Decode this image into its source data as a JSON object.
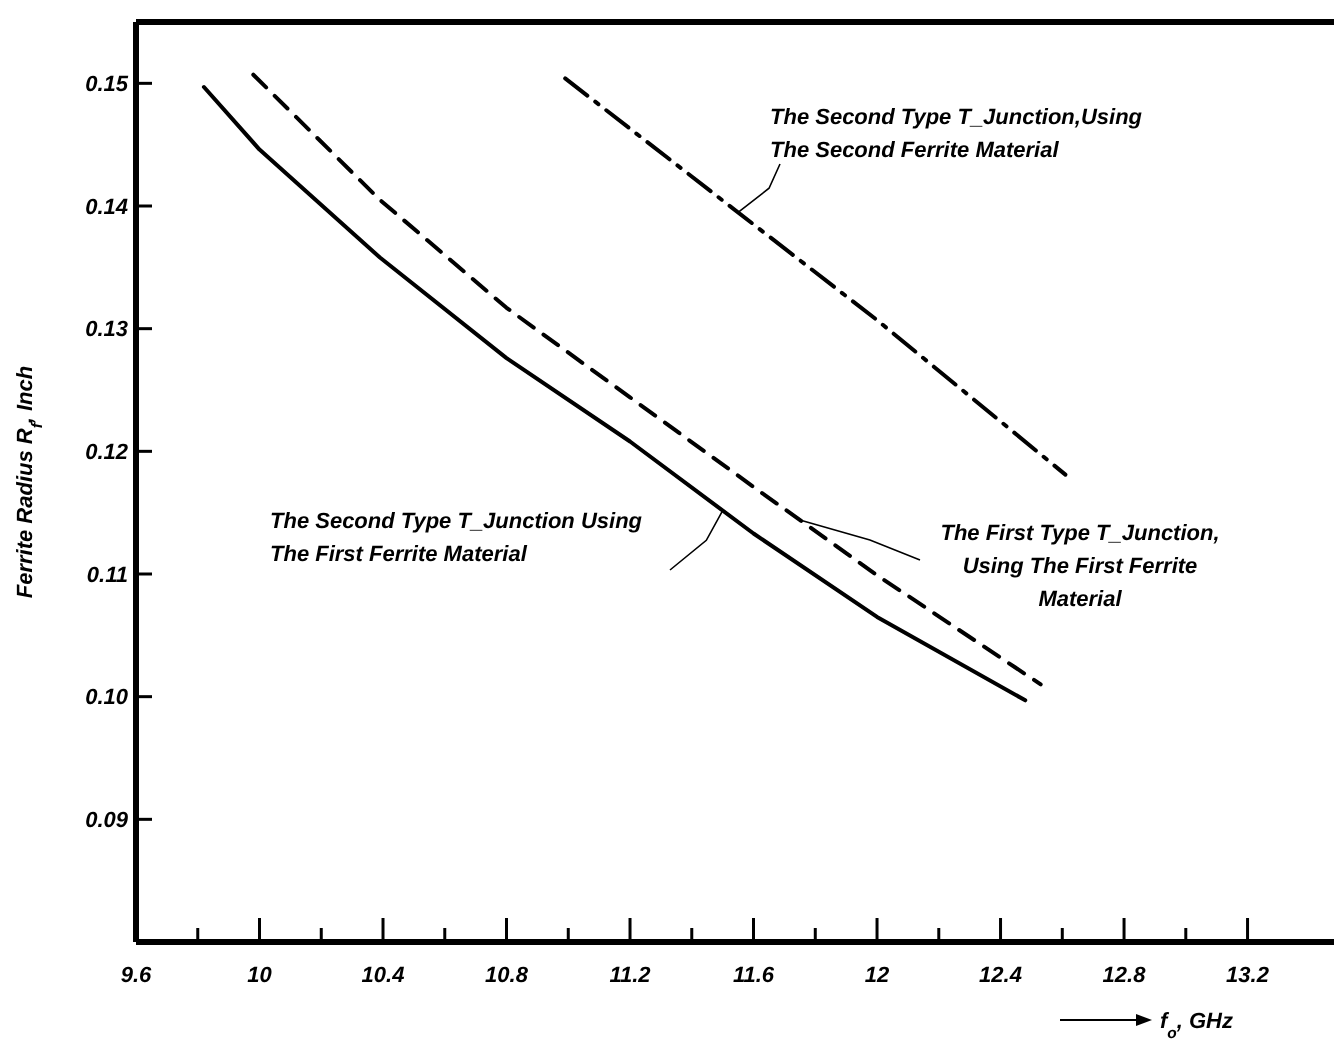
{
  "chart_data": {
    "type": "line",
    "xlabel": "f$_{o}$, GHz",
    "ylabel": "Ferrite Radius R$_{f}$, Inch",
    "xlim": [
      9.6,
      13.48
    ],
    "ylim": [
      0.08,
      0.155
    ],
    "xticks": [
      {
        "value": 9.6,
        "label": "9.6"
      },
      {
        "value": 9.8,
        "label": null
      },
      10,
      {
        "value": 10.2,
        "label": null
      },
      10.4,
      {
        "value": 10.6,
        "label": null
      },
      10.8,
      {
        "value": 11,
        "label": null
      },
      11.2,
      {
        "value": 11.4,
        "label": null
      },
      11.6,
      {
        "value": 11.8,
        "label": null
      },
      12,
      {
        "value": 12.2,
        "label": null
      },
      12.4,
      {
        "value": 12.6,
        "label": null
      },
      12.8,
      {
        "value": 13,
        "label": null
      },
      13.2
    ],
    "yticks": [
      0.09,
      {
        "value": 0.1,
        "label": "0.10"
      },
      0.11,
      0.12,
      0.13,
      0.14,
      0.15
    ],
    "grid": false,
    "marker": "none",
    "series": [
      {
        "name": "The Second Type T_Junction Using\nThe First Ferrite Material",
        "color": "#000000",
        "line_style": "solid",
        "x": [
          9.82,
          10.0,
          10.39,
          10.8,
          11.2,
          11.6,
          12.0,
          12.48
        ],
        "values": [
          0.1497,
          0.1446,
          0.1358,
          0.1276,
          0.1208,
          0.1133,
          0.1065,
          0.0997
        ]
      },
      {
        "name": "The First Type T_Junction,\nUsing The First Ferrite\nMaterial",
        "color": "#000000",
        "line_style": "dashed",
        "x": [
          9.98,
          10.39,
          10.8,
          11.2,
          11.6,
          12.0,
          12.53
        ],
        "values": [
          0.1507,
          0.1405,
          0.1317,
          0.1244,
          0.1171,
          0.1099,
          0.101
        ]
      },
      {
        "name": "The Second Type T_Junction,Using\nThe Second Ferrite Material",
        "color": "#000000",
        "line_style": "dashdot",
        "x": [
          10.99,
          11.6,
          12.0,
          12.61
        ],
        "values": [
          0.1504,
          0.1385,
          0.1307,
          0.1181
        ]
      }
    ]
  }
}
